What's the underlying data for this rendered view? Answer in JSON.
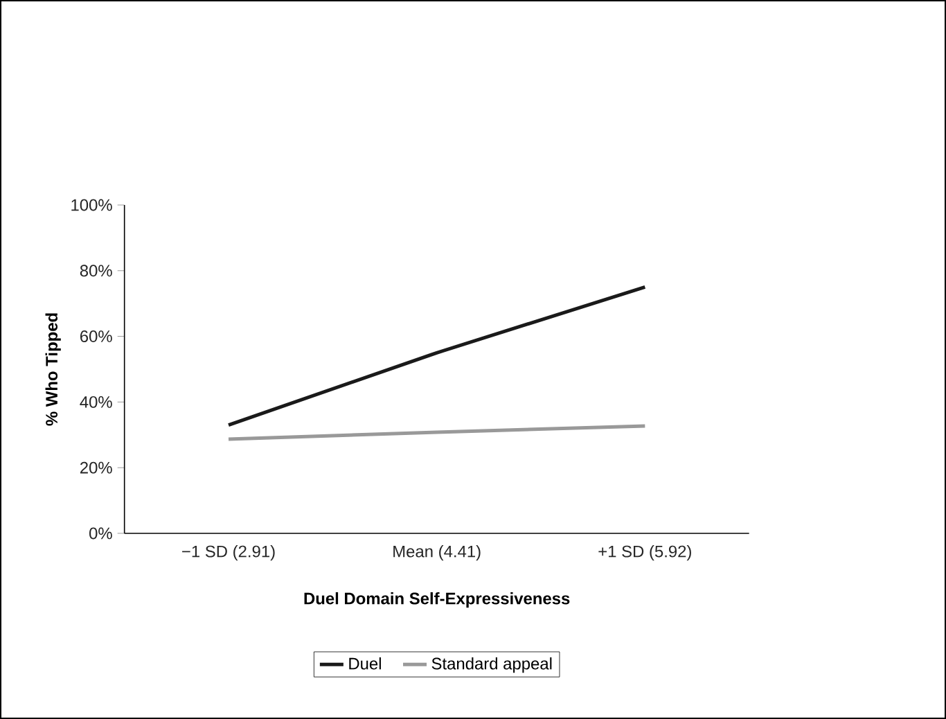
{
  "chart_data": {
    "type": "line",
    "xlabel": "Duel Domain Self-Expressiveness",
    "ylabel": "% Who Tipped",
    "categories": [
      "−1 SD (2.91)",
      "Mean (4.41)",
      "+1 SD (5.92)"
    ],
    "series": [
      {
        "name": "Duel",
        "color": "#1a1a1a",
        "values": [
          33,
          55,
          75
        ]
      },
      {
        "name": "Standard appeal",
        "color": "#999999",
        "values": [
          28.7,
          30.8,
          32.7
        ]
      }
    ],
    "ylim": [
      0,
      100
    ],
    "yticks": [
      {
        "value": 0,
        "label": "0%"
      },
      {
        "value": 20,
        "label": "20%"
      },
      {
        "value": 40,
        "label": "40%"
      },
      {
        "value": 60,
        "label": "60%"
      },
      {
        "value": 80,
        "label": "80%"
      },
      {
        "value": 100,
        "label": "100%"
      }
    ],
    "grid": false,
    "legend": "bottom",
    "marker": "none",
    "line_style": "solid"
  }
}
